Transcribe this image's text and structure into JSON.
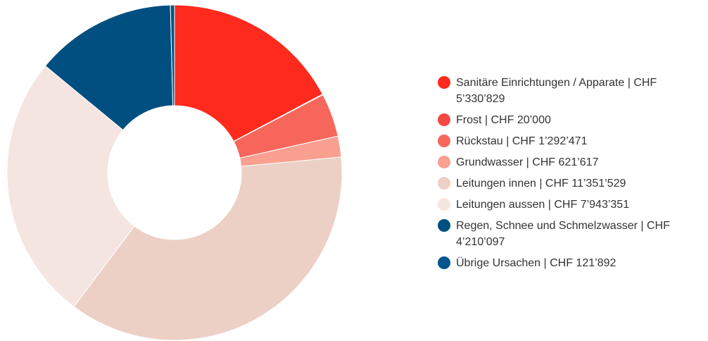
{
  "chart_data": {
    "type": "donut",
    "categories": [
      "Sanitäre Einrichtungen / Apparate | CHF 5’330’829",
      "Frost | CHF 20’000",
      "Rückstau | CHF 1’292’471",
      "Grundwasser | CHF 621’617",
      "Leitungen innen | CHF 11’351’529",
      "Leitungen aussen | CHF 7’943’351",
      "Regen, Schnee und Schmelzwasser | CHF 4’210’097",
      "Übrige Ursachen | CHF 121’892"
    ],
    "values": [
      5330829,
      20000,
      1292471,
      621617,
      11351529,
      7943351,
      4210097,
      121892
    ],
    "colors": [
      "#fe2a1d",
      "#f24a43",
      "#f7665a",
      "#f9a091",
      "#ecd0c6",
      "#f5e5e0",
      "#004f80",
      "#00568c"
    ],
    "legend": "right"
  }
}
